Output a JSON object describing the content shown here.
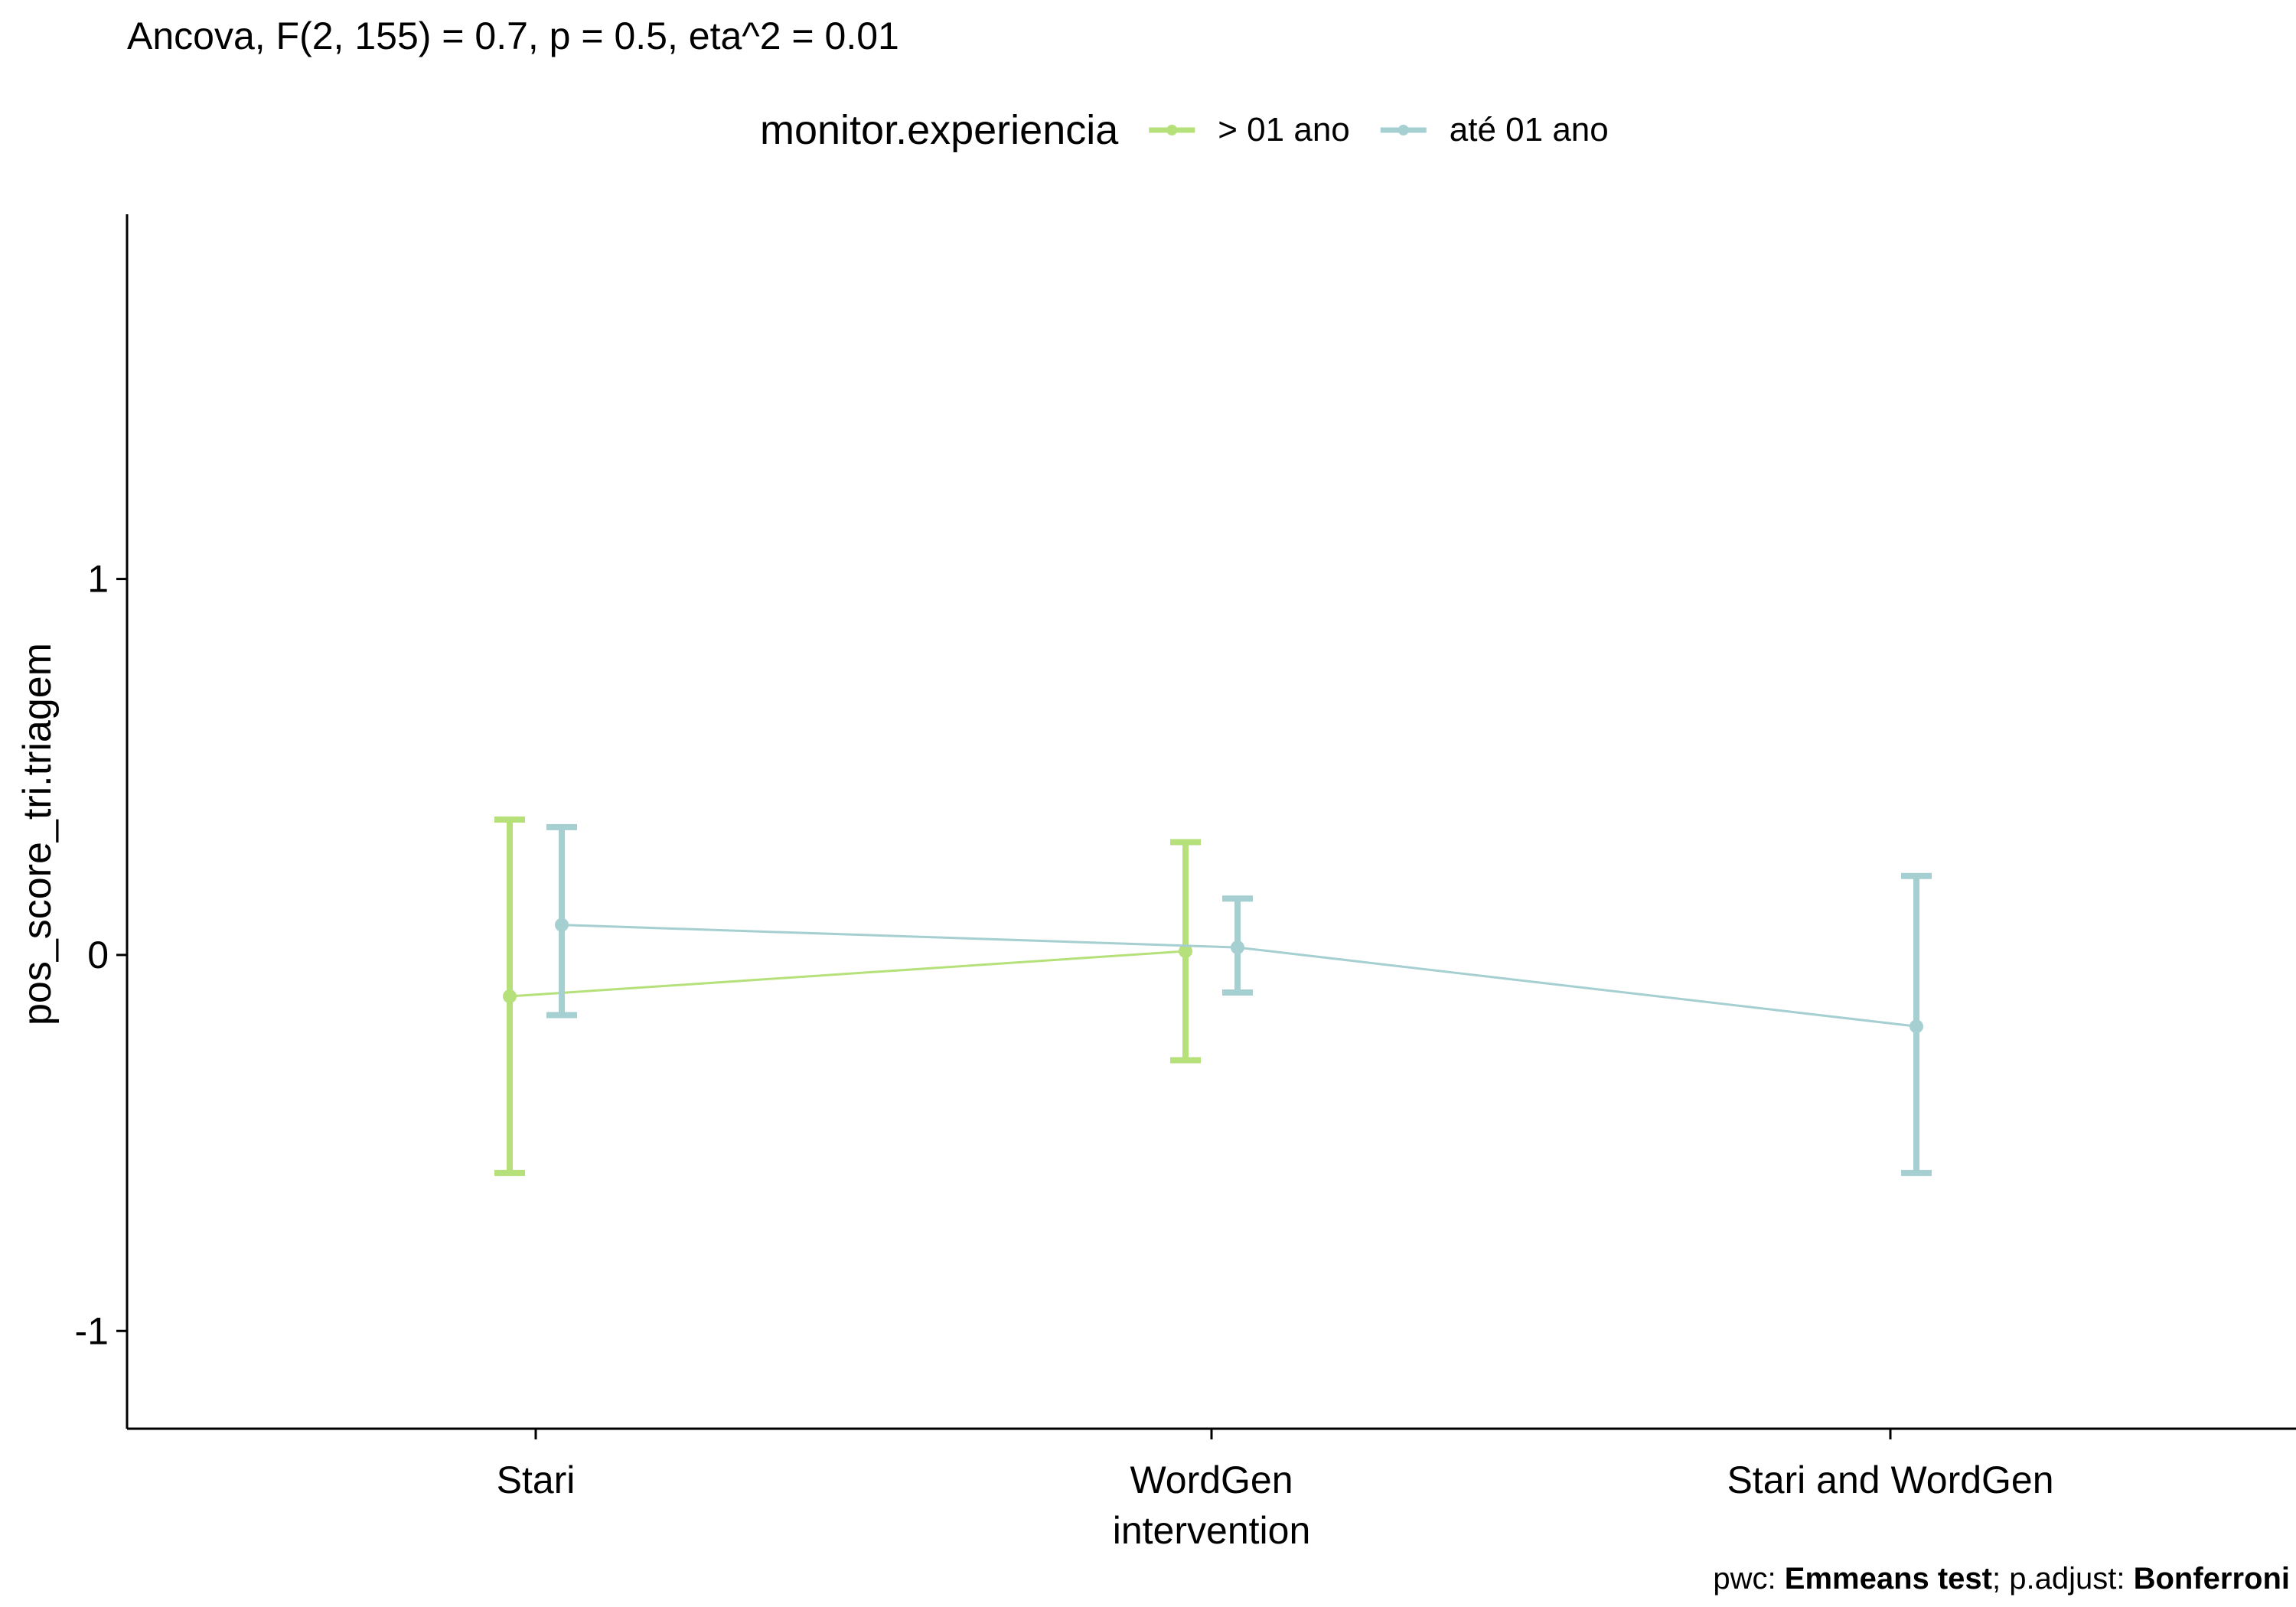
{
  "chart_data": {
    "type": "line",
    "title": "Ancova, F(2, 155) = 0.7, p = 0.5, eta^2 = 0.01",
    "legend_title": "monitor.experiencia",
    "legend_position": "top",
    "xlabel": "",
    "ylabel": "pos_score_tri.triagem",
    "categories": [
      "Stari",
      "WordGen intervention",
      "Stari and WordGen"
    ],
    "category_lines": [
      [
        "Stari"
      ],
      [
        "WordGen",
        "intervention"
      ],
      [
        "Stari and WordGen"
      ]
    ],
    "yticks": [
      -1,
      0,
      1
    ],
    "ylim": [
      -1.26,
      1.97
    ],
    "grid": false,
    "series": [
      {
        "name": "> 01 ano",
        "color": "#b5e07a",
        "means": [
          -0.11,
          0.01,
          null
        ],
        "ci_low": [
          -0.58,
          -0.28,
          null
        ],
        "ci_high": [
          0.36,
          0.3,
          null
        ]
      },
      {
        "name": "até 01 ano",
        "color": "#a6cfd1",
        "means": [
          0.08,
          0.02,
          -0.19
        ],
        "ci_low": [
          -0.16,
          -0.1,
          -0.58
        ],
        "ci_high": [
          0.34,
          0.15,
          0.21
        ]
      }
    ],
    "caption": {
      "prefix1": "pwc: ",
      "bold1": "Emmeans test",
      "prefix2": "; p.adjust: ",
      "bold2": "Bonferroni"
    }
  }
}
